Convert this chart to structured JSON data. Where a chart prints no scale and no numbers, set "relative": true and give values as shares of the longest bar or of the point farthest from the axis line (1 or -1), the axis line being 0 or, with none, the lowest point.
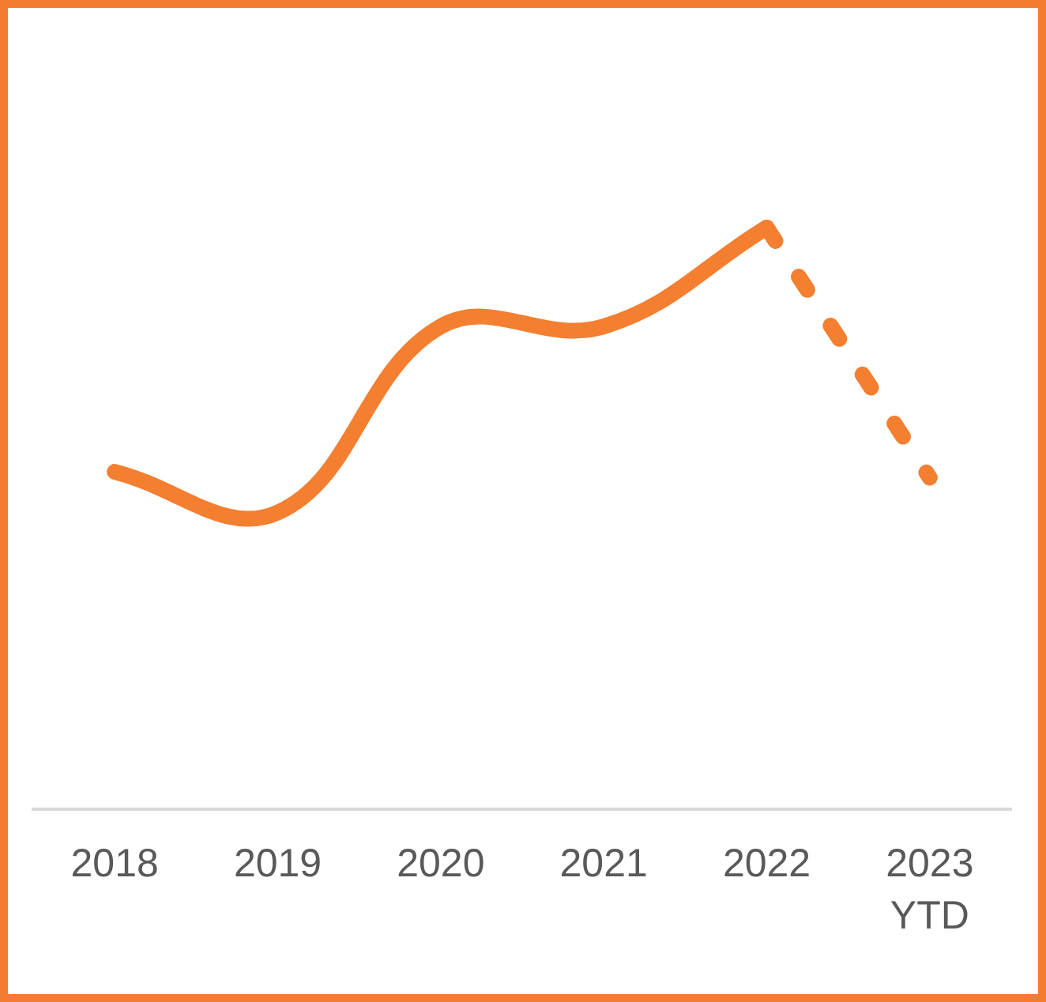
{
  "chart_data": {
    "type": "line",
    "relative": true,
    "marker": "none",
    "categories": [
      "2018",
      "2019",
      "2020",
      "2021",
      "2022",
      "2023 YTD"
    ],
    "series": [
      {
        "color": "#f47f30",
        "line_style": "solid",
        "values": [
          0.58,
          0.51,
          0.83,
          0.83,
          1,
          null
        ]
      },
      {
        "color": "#f47f30",
        "line_style": "dashed",
        "values": [
          null,
          null,
          null,
          null,
          1,
          0.57
        ]
      }
    ]
  }
}
